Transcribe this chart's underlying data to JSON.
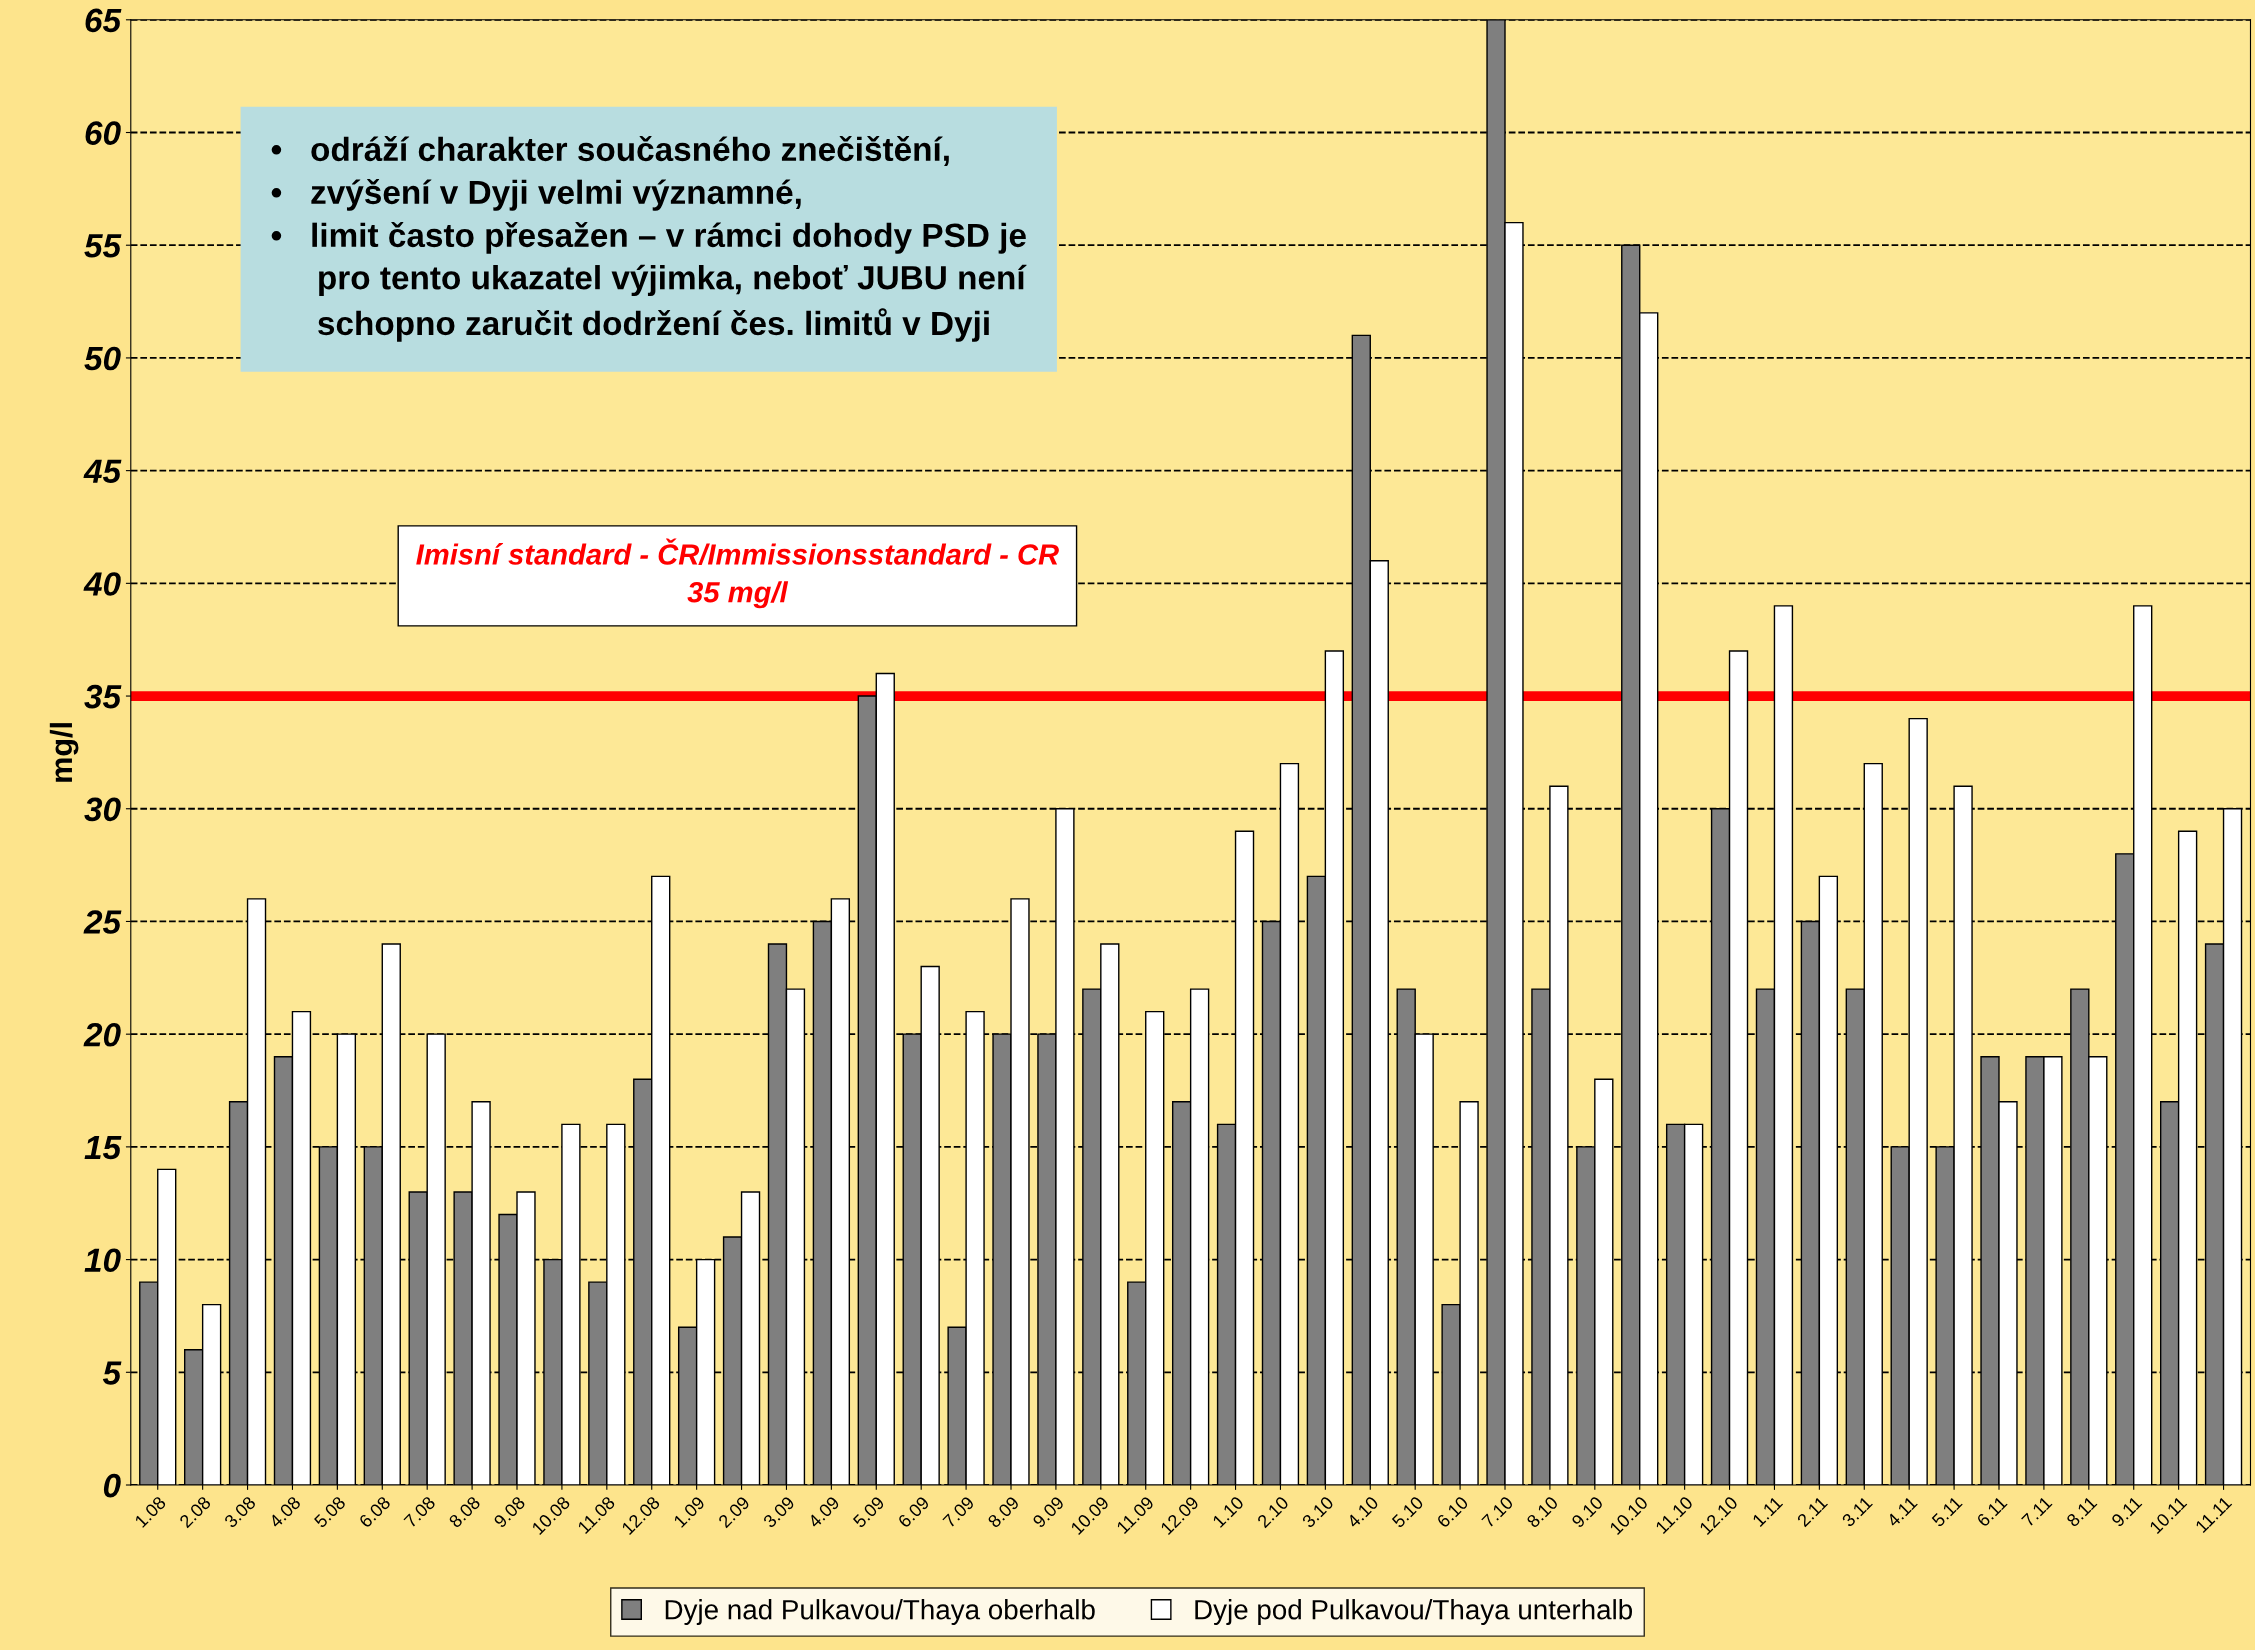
{
  "chart_data": {
    "type": "bar",
    "ylabel": "mg/l",
    "categories": [
      "1.08",
      "2.08",
      "3.08",
      "4.08",
      "5.08",
      "6.08",
      "7.08",
      "8.08",
      "9.08",
      "10.08",
      "11.08",
      "12.08",
      "1.09",
      "2.09",
      "3.09",
      "4.09",
      "5.09",
      "6.09",
      "7.09",
      "8.09",
      "9.09",
      "10.09",
      "11.09",
      "12.09",
      "1.10",
      "2.10",
      "3.10",
      "4.10",
      "5.10",
      "6.10",
      "7.10",
      "8.10",
      "9.10",
      "10.10",
      "11.10",
      "12.10",
      "1.11",
      "2.11",
      "3.11",
      "4.11",
      "5.11",
      "6.11",
      "7.11",
      "8.11",
      "9.11",
      "10.11",
      "11.11"
    ],
    "series": [
      {
        "name": "Dyje nad Pulkavou/Thaya oberhalb",
        "color": "#7f7f7f",
        "values": [
          9,
          6,
          17,
          19,
          15,
          15,
          13,
          13,
          12,
          10,
          9,
          18,
          7,
          11,
          24,
          25,
          35,
          20,
          7,
          20,
          20,
          22,
          9,
          17,
          16,
          25,
          27,
          51,
          22,
          8,
          65,
          22,
          15,
          55,
          16,
          30,
          22,
          25,
          22,
          15,
          15,
          19,
          19,
          22,
          28,
          17,
          24
        ]
      },
      {
        "name": "Dyje pod Pulkavou/Thaya unterhalb",
        "color": "#ffffff",
        "values": [
          14,
          8,
          26,
          21,
          20,
          24,
          20,
          17,
          13,
          16,
          16,
          27,
          10,
          13,
          22,
          26,
          36,
          23,
          21,
          26,
          30,
          24,
          21,
          22,
          29,
          32,
          37,
          41,
          20,
          17,
          56,
          31,
          18,
          52,
          16,
          37,
          39,
          27,
          32,
          34,
          31,
          17,
          19,
          19,
          39,
          29,
          30
        ]
      }
    ],
    "ylim": [
      0,
      65
    ],
    "yticks": [
      0,
      5,
      10,
      15,
      20,
      25,
      30,
      35,
      40,
      45,
      50,
      55,
      60,
      65
    ],
    "grid": "y",
    "legend": "bottom",
    "ref_lines": [
      {
        "axis": "y",
        "value": 35,
        "label": "Imisní standard - ČR/Immissionsstandard - CR\n35 mg/l",
        "color": "#ff0000"
      }
    ],
    "annotations": [
      "•   odráží charakter současného znečištění,\n•   zvýšení v Dyji velmi významné,\n•   limit často přesažen – v rámci dohody PSD je\n     pro tento ukazatel výjimka, neboť JUBU není\n     schopno zaručit dodržení čes. limitů v Dyji"
    ]
  }
}
